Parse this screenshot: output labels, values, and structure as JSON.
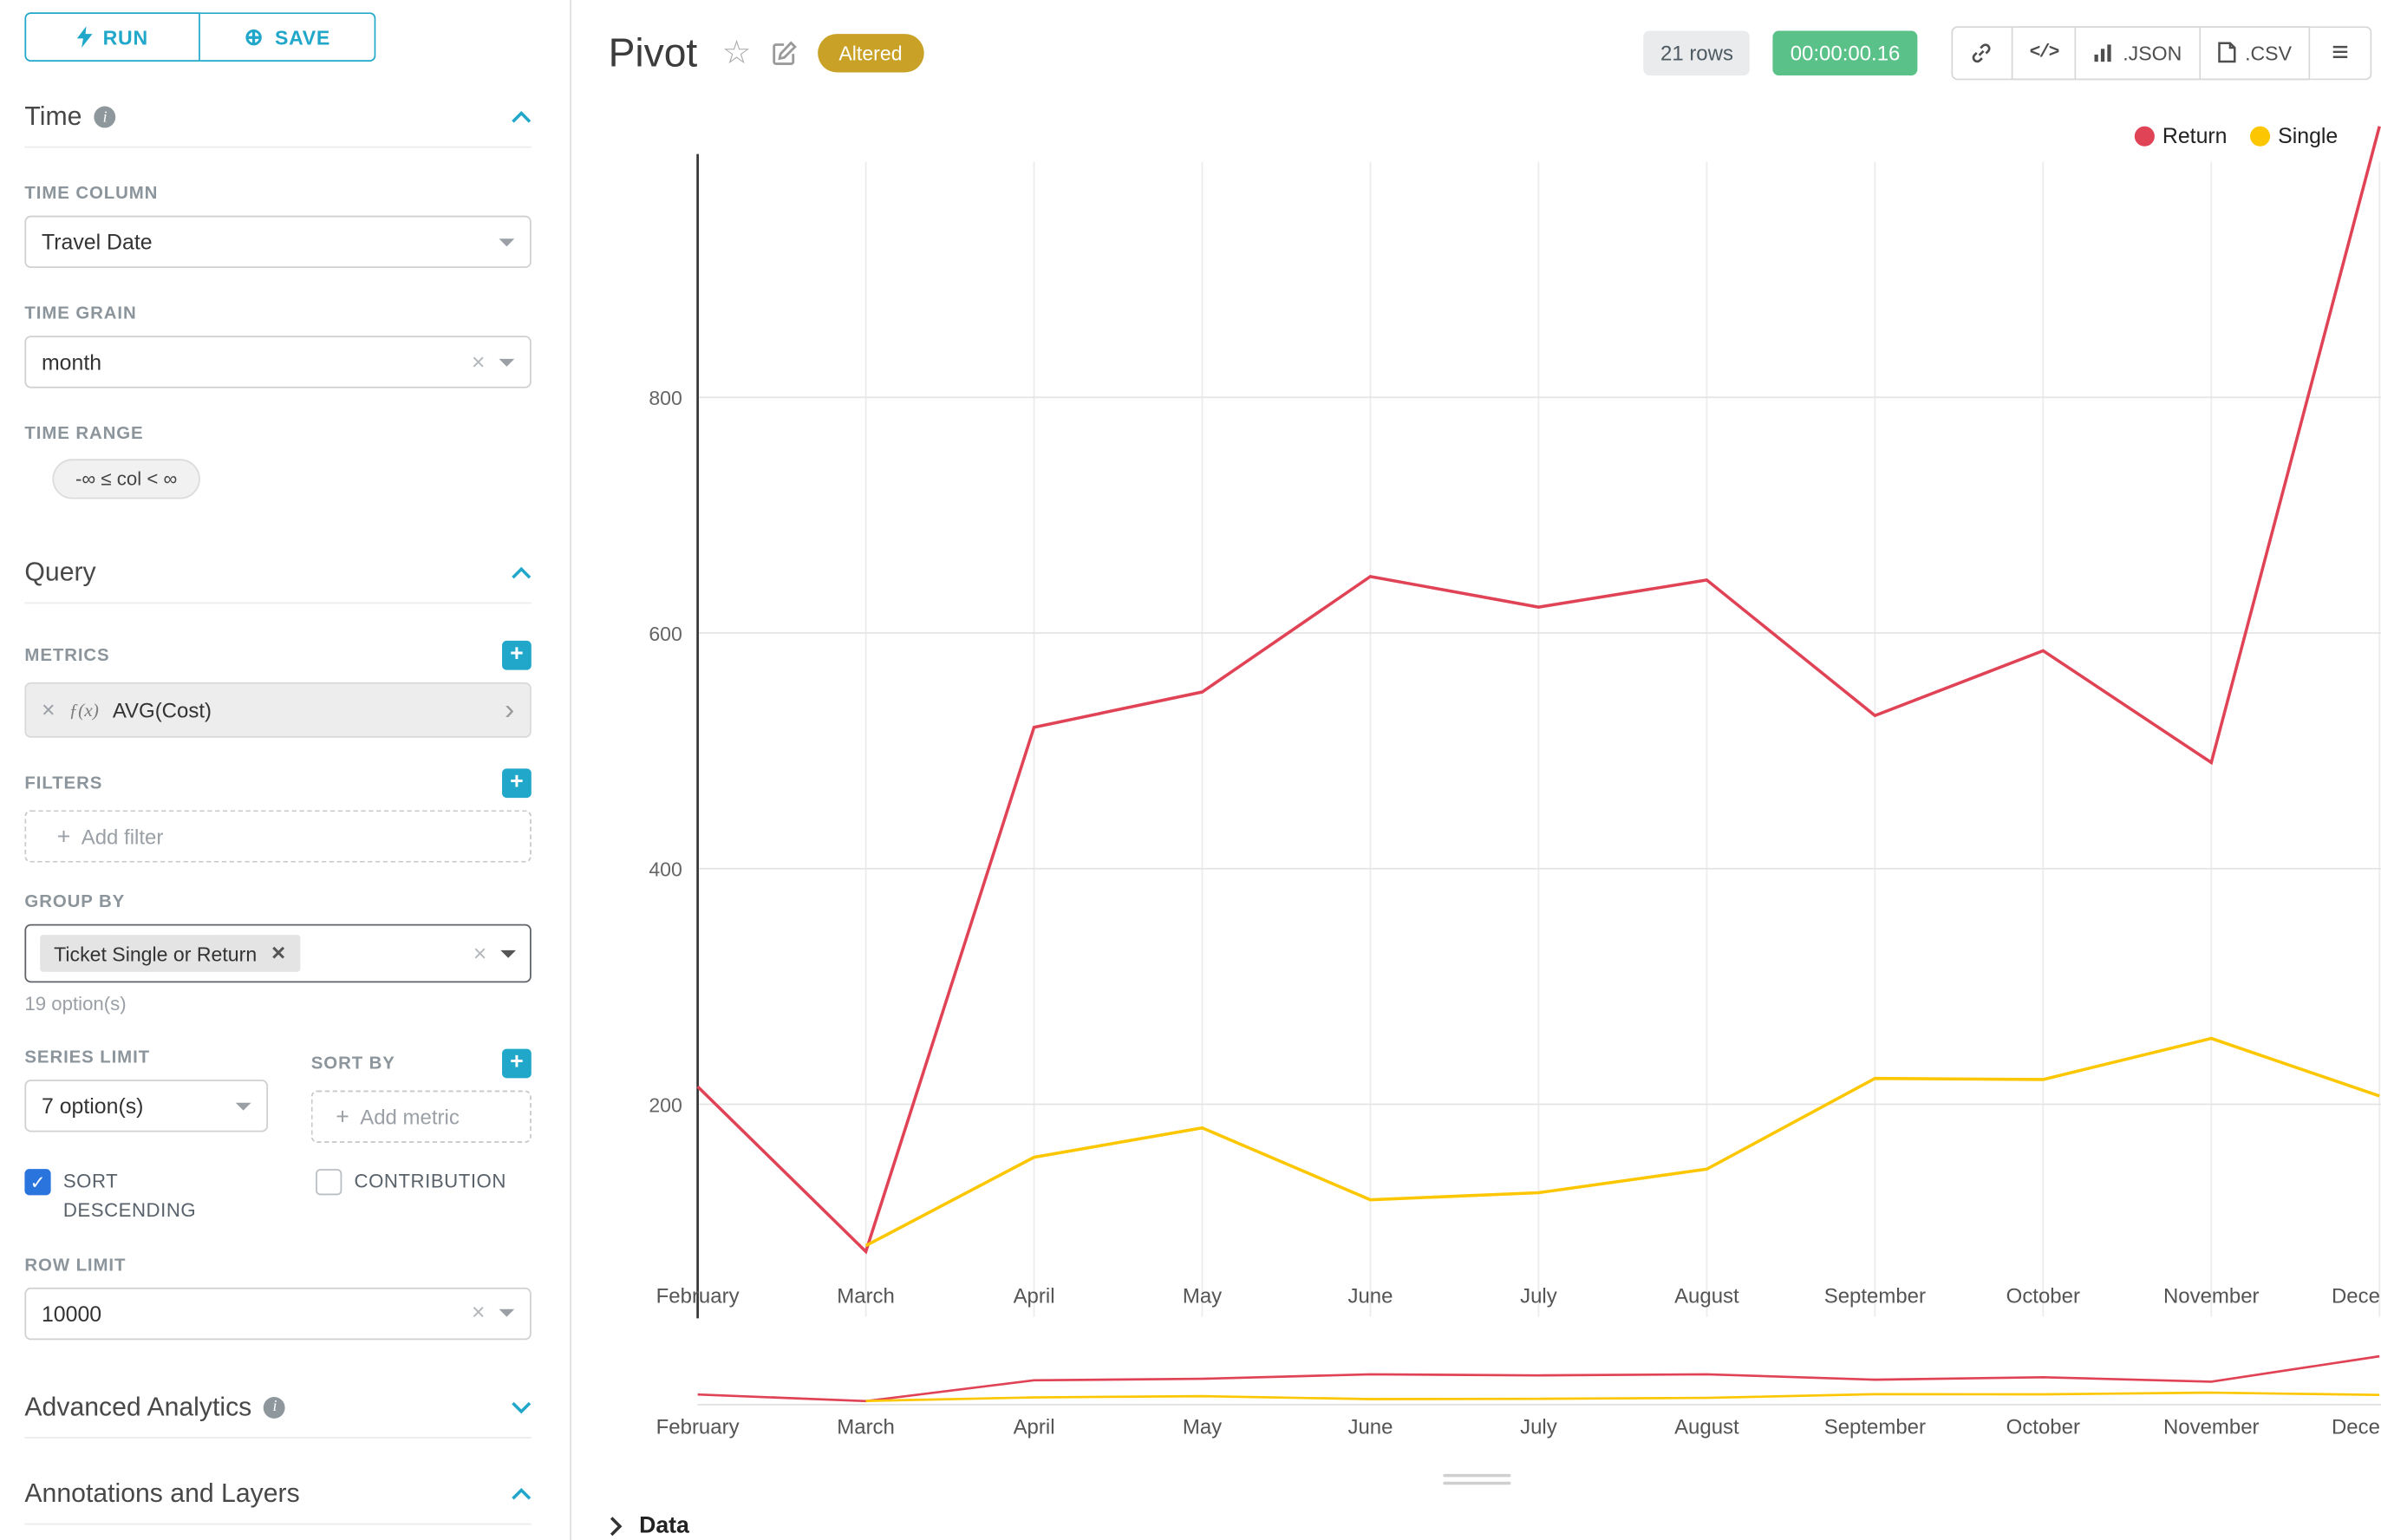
{
  "colors": {
    "primary": "#20a7c9",
    "return_line": "#e04355",
    "single_line": "#fcc700",
    "altered_badge": "#c9a126",
    "timer_badge": "#5ac189",
    "checkbox": "#2a74dd"
  },
  "toolbar": {
    "run": "RUN",
    "save": "SAVE"
  },
  "sidebar": {
    "time": {
      "title": "Time",
      "time_column_label": "TIME COLUMN",
      "time_column_value": "Travel Date",
      "time_grain_label": "TIME GRAIN",
      "time_grain_value": "month",
      "time_range_label": "TIME RANGE",
      "time_range_value": "-∞ ≤ col < ∞"
    },
    "query": {
      "title": "Query",
      "metrics_label": "METRICS",
      "metric_prefix": "ƒ(x)",
      "metric_value": "AVG(Cost)",
      "filters_label": "FILTERS",
      "add_filter_placeholder": "Add filter",
      "group_by_label": "GROUP BY",
      "group_by_tag": "Ticket Single or Return",
      "group_by_hint": "19 option(s)",
      "series_limit_label": "SERIES LIMIT",
      "series_limit_value": "7 option(s)",
      "sort_by_label": "SORT BY",
      "add_metric_placeholder": "Add metric",
      "sort_descending_label": "SORT DESCENDING",
      "sort_descending_checked": true,
      "contribution_label": "CONTRIBUTION",
      "contribution_checked": false,
      "row_limit_label": "ROW LIMIT",
      "row_limit_value": "10000"
    },
    "advanced_analytics_title": "Advanced Analytics",
    "annotations_title": "Annotations and Layers"
  },
  "header": {
    "title": "Pivot",
    "altered_badge": "Altered",
    "rows_badge": "21 rows",
    "timer_badge": "00:00:00.16",
    "export_json": ".JSON",
    "export_csv": ".CSV"
  },
  "chart_data": {
    "type": "line",
    "x": [
      "February",
      "March",
      "April",
      "May",
      "June",
      "July",
      "August",
      "September",
      "October",
      "November",
      "December"
    ],
    "series": [
      {
        "name": "Return",
        "color": "#e04355",
        "values": [
          215,
          75,
          520,
          550,
          648,
          622,
          645,
          530,
          585,
          490,
          1030
        ]
      },
      {
        "name": "Single",
        "color": "#fcc700",
        "values": [
          null,
          80,
          155,
          180,
          119,
          125,
          145,
          222,
          221,
          256,
          207
        ]
      }
    ],
    "title": "",
    "xlabel": "",
    "ylabel": "",
    "yticks": [
      200,
      400,
      600,
      800
    ],
    "ylim": [
      0,
      1050
    ],
    "grid": true,
    "legend_position": "top-right",
    "has_brush_minichart": true
  },
  "data_panel_label": "Data"
}
